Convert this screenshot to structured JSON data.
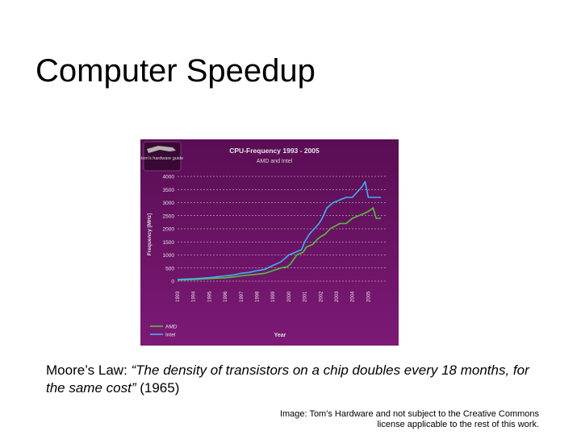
{
  "slide": {
    "title": "Computer Speedup",
    "quote_prefix": "Moore’s Law: ",
    "quote_text": "“The density of transistors on a chip doubles every 18 months, for the same cost”",
    "quote_suffix": " (1965)",
    "credit": "Image: Tom's Hardware and not subject to the Creative Commons license applicable to the rest of this work."
  },
  "logo": {
    "text": "tom's hardware guide"
  },
  "colors": {
    "background_top": "#5a0d54",
    "background_bottom": "#7c1a76",
    "grid": "#e0e0e0",
    "amd": "#55c040",
    "intel": "#3fb2f2",
    "text": "#e6e6e6"
  },
  "chart_data": {
    "type": "line",
    "title": "CPU-Frequency 1993 - 2005",
    "subtitle": "AMD and Intel",
    "xlabel": "Year",
    "ylabel": "Frequency [MHz]",
    "ylim": [
      0,
      4000
    ],
    "yticks": [
      "0",
      "500",
      "1000",
      "1500",
      "2000",
      "2500",
      "3000",
      "3500",
      "4000"
    ],
    "xticks": [
      "1993",
      "1994",
      "1995",
      "1996",
      "1997",
      "1998",
      "1999",
      "2000",
      "2001",
      "2002",
      "2003",
      "2004",
      "2005"
    ],
    "xlim": [
      1993,
      2006.2
    ],
    "grid": true,
    "legend": "bottom-left",
    "series": [
      {
        "name": "AMD",
        "color": "#55c040",
        "x": [
          1993,
          1994,
          1995,
          1996,
          1996.5,
          1997,
          1997.5,
          1998,
          1998.5,
          1999,
          1999.5,
          1999.9,
          2000.1,
          2000.5,
          2000.9,
          2001.1,
          2001.5,
          2001.8,
          2002,
          2002.3,
          2002.6,
          2002.9,
          2003.2,
          2003.6,
          2004,
          2004.4,
          2004.8,
          2005.1,
          2005.3,
          2005.5,
          2005.8
        ],
        "y": [
          40,
          60,
          100,
          130,
          160,
          200,
          233,
          266,
          300,
          400,
          500,
          550,
          650,
          1000,
          1100,
          1300,
          1400,
          1600,
          1700,
          1800,
          2000,
          2100,
          2200,
          2200,
          2400,
          2500,
          2600,
          2700,
          2800,
          2400,
          2400
        ]
      },
      {
        "name": "Intel",
        "color": "#3fb2f2",
        "x": [
          1993,
          1994,
          1995,
          1996,
          1996.5,
          1997,
          1997.5,
          1998,
          1998.5,
          1999,
          1999.5,
          2000,
          2000.4,
          2000.8,
          2001,
          2001.3,
          2001.6,
          2001.9,
          2002.1,
          2002.4,
          2002.8,
          2003.2,
          2003.6,
          2004,
          2004.3,
          2004.6,
          2004.8,
          2005,
          2005.2,
          2005.5,
          2005.8
        ],
        "y": [
          66,
          90,
          133,
          200,
          233,
          300,
          333,
          400,
          450,
          600,
          733,
          1000,
          1100,
          1200,
          1500,
          1800,
          2000,
          2200,
          2400,
          2800,
          3000,
          3100,
          3200,
          3200,
          3400,
          3600,
          3800,
          3200,
          3200,
          3200,
          3200
        ]
      }
    ]
  }
}
